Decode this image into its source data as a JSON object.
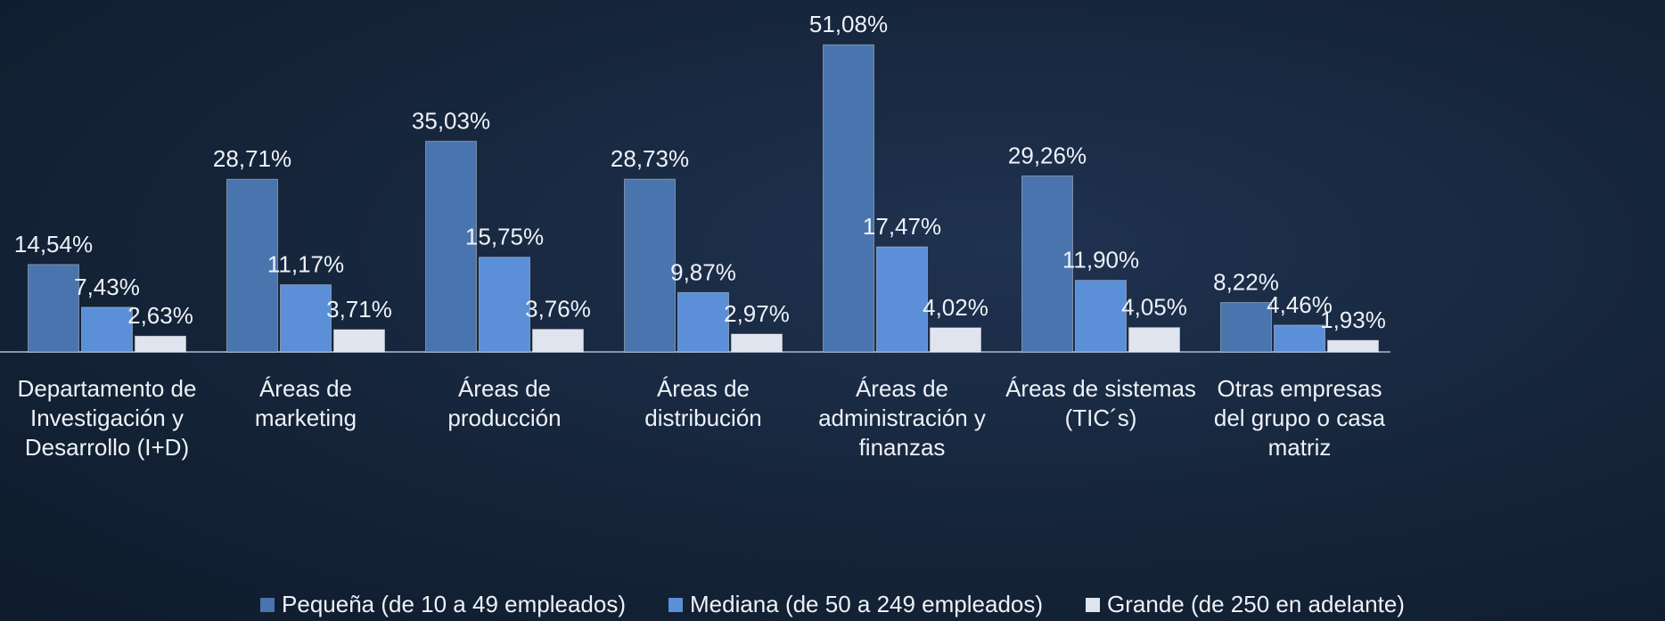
{
  "chart_data": {
    "type": "bar",
    "categories": [
      "Departamento de Investigación y Desarrollo (I+D)",
      "Áreas de marketing",
      "Áreas de producción",
      "Áreas de distribución",
      "Áreas de administración y finanzas",
      "Áreas de sistemas (TIC´s)",
      "Otras empresas del grupo o casa matriz"
    ],
    "series": [
      {
        "name": "Pequeña (de 10 a 49 empleados)",
        "color": "#4a74ad",
        "values": [
          14.54,
          28.71,
          35.03,
          28.73,
          51.08,
          29.26,
          8.22
        ],
        "value_labels": [
          "14,54%",
          "28,71%",
          "35,03%",
          "28,73%",
          "51,08%",
          "29,26%",
          "8,22%"
        ]
      },
      {
        "name": "Mediana (de 50 a 249 empleados)",
        "color": "#5b90d8",
        "values": [
          7.43,
          11.17,
          15.75,
          9.87,
          17.47,
          11.9,
          4.46
        ],
        "value_labels": [
          "7,43%",
          "11,17%",
          "15,75%",
          "9,87%",
          "17,47%",
          "11,90%",
          "4,46%"
        ]
      },
      {
        "name": "Grande (de 250 en adelante)",
        "color": "#dfe4ee",
        "values": [
          2.63,
          3.71,
          3.76,
          2.97,
          4.02,
          4.05,
          1.93
        ],
        "value_labels": [
          "2,63%",
          "3,71%",
          "3,76%",
          "2,97%",
          "4,02%",
          "4,05%",
          "1,93%"
        ]
      }
    ],
    "legend": "bottom"
  }
}
